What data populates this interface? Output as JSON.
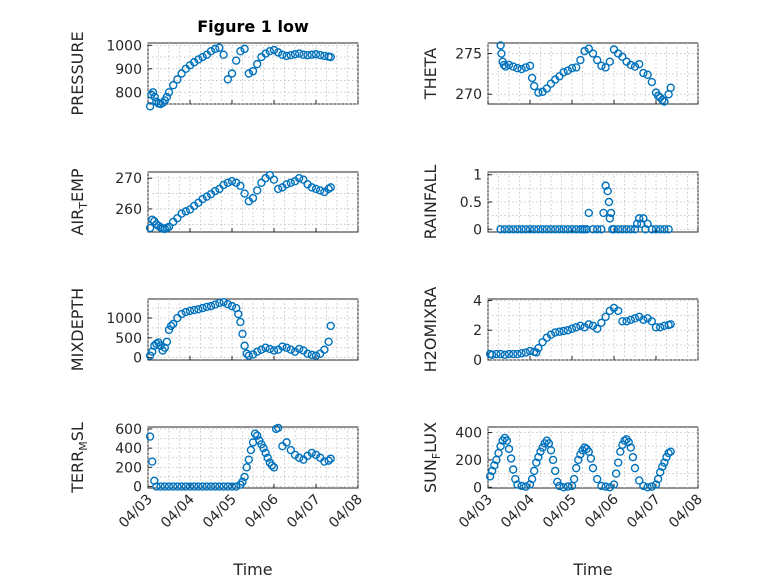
{
  "chart_data": [
    {
      "type": "scatter",
      "title": "Figure 1 low",
      "ylabel": "PRESSURE",
      "ylim": [
        750,
        1010
      ],
      "yticks": [
        800,
        900,
        1000
      ],
      "ytick_labels": [
        "800",
        "900",
        "1000"
      ],
      "xlim": [
        "04/03",
        "04/08"
      ],
      "series": [
        {
          "x": [
            3.05,
            3.08,
            3.12,
            3.16,
            3.2,
            3.25,
            3.3,
            3.35,
            3.4,
            3.45,
            3.5,
            3.6,
            3.7,
            3.8,
            3.9,
            4.0,
            4.1,
            4.2,
            4.3,
            4.4,
            4.5,
            4.6,
            4.7,
            4.8,
            4.9,
            5.0,
            5.1,
            5.2,
            5.3,
            5.4,
            5.5,
            5.6,
            5.7,
            5.8,
            5.9,
            6.0,
            6.1,
            6.2,
            6.3,
            6.4,
            6.5,
            6.6,
            6.7,
            6.8,
            6.9,
            7.0,
            7.1,
            7.2,
            7.3,
            7.35
          ],
          "y": [
            740,
            790,
            800,
            780,
            760,
            752,
            750,
            755,
            765,
            780,
            800,
            830,
            855,
            880,
            900,
            915,
            928,
            940,
            950,
            960,
            975,
            985,
            990,
            960,
            855,
            880,
            935,
            975,
            985,
            880,
            890,
            920,
            950,
            965,
            975,
            980,
            970,
            960,
            955,
            958,
            962,
            965,
            960,
            958,
            960,
            962,
            958,
            955,
            952,
            950
          ]
        }
      ]
    },
    {
      "type": "scatter",
      "ylabel": "THETA",
      "ylim": [
        268.8,
        276.3
      ],
      "yticks": [
        270,
        275
      ],
      "ytick_labels": [
        "270",
        "275"
      ],
      "xlim": [
        "04/03",
        "04/08"
      ],
      "series": [
        {
          "x": [
            3.3,
            3.32,
            3.35,
            3.38,
            3.42,
            3.5,
            3.6,
            3.7,
            3.8,
            3.9,
            4.0,
            4.05,
            4.1,
            4.2,
            4.3,
            4.4,
            4.5,
            4.6,
            4.7,
            4.8,
            4.9,
            5.0,
            5.1,
            5.2,
            5.3,
            5.4,
            5.5,
            5.6,
            5.7,
            5.8,
            5.9,
            6.0,
            6.1,
            6.2,
            6.3,
            6.4,
            6.5,
            6.6,
            6.7,
            6.8,
            6.9,
            7.0,
            7.05,
            7.1,
            7.15,
            7.2,
            7.3,
            7.35
          ],
          "y": [
            276,
            275,
            274,
            273.6,
            273.4,
            273.6,
            273.4,
            273.2,
            273.1,
            273.3,
            273.5,
            272,
            271,
            270.2,
            270.3,
            270.7,
            271.3,
            271.8,
            272.2,
            272.7,
            272.9,
            273.2,
            273.3,
            274.2,
            275.3,
            275.6,
            275,
            274.2,
            273.5,
            273.3,
            274,
            275.5,
            275,
            274.6,
            274,
            273.6,
            273.4,
            273.7,
            272.6,
            272.4,
            271.5,
            270.2,
            269.8,
            269.6,
            269.3,
            269.1,
            270,
            270.8
          ]
        }
      ]
    },
    {
      "type": "scatter",
      "ylabel": "AIR_TEMP",
      "ylim": [
        252.5,
        272
      ],
      "yticks": [
        260,
        270
      ],
      "ytick_labels": [
        "260",
        "270"
      ],
      "xlim": [
        "04/03",
        "04/08"
      ],
      "series": [
        {
          "x": [
            3.05,
            3.1,
            3.15,
            3.2,
            3.25,
            3.3,
            3.35,
            3.4,
            3.45,
            3.5,
            3.6,
            3.7,
            3.8,
            3.9,
            4.0,
            4.1,
            4.2,
            4.3,
            4.4,
            4.5,
            4.6,
            4.7,
            4.8,
            4.9,
            5.0,
            5.1,
            5.2,
            5.3,
            5.4,
            5.5,
            5.6,
            5.7,
            5.8,
            5.9,
            6.0,
            6.1,
            6.2,
            6.3,
            6.4,
            6.5,
            6.6,
            6.7,
            6.8,
            6.9,
            7.0,
            7.1,
            7.2,
            7.3,
            7.35
          ],
          "y": [
            253.8,
            256.5,
            256,
            255,
            254.5,
            254,
            253.6,
            253.5,
            253.8,
            254.2,
            255.8,
            257,
            258.5,
            259.2,
            259.8,
            261,
            262,
            263.2,
            264,
            264.8,
            265.8,
            266.5,
            267.8,
            268.5,
            269,
            268.5,
            267.5,
            265,
            262.5,
            263.5,
            266,
            268.5,
            270,
            271,
            269.5,
            266.5,
            267,
            268,
            268.5,
            269,
            270,
            269.5,
            268,
            267,
            266.5,
            266,
            265.5,
            266.5,
            267
          ]
        }
      ]
    },
    {
      "type": "scatter",
      "ylabel": "RAINFALL",
      "ylim": [
        -0.05,
        1.05
      ],
      "yticks": [
        0,
        0.5,
        1
      ],
      "ytick_labels": [
        "0",
        "0.5",
        "1"
      ],
      "xlim": [
        "04/03",
        "04/08"
      ],
      "series": [
        {
          "x": [
            3.3,
            3.4,
            3.5,
            3.6,
            3.7,
            3.8,
            3.9,
            4.0,
            4.1,
            4.2,
            4.3,
            4.4,
            4.5,
            4.6,
            4.7,
            4.8,
            4.9,
            5.0,
            5.1,
            5.2,
            5.25,
            5.3,
            5.35,
            5.4,
            5.5,
            5.6,
            5.7,
            5.75,
            5.8,
            5.85,
            5.88,
            5.9,
            5.93,
            5.96,
            6.0,
            6.1,
            6.2,
            6.3,
            6.4,
            6.5,
            6.55,
            6.6,
            6.65,
            6.7,
            6.75,
            6.8,
            6.9,
            7.0,
            7.1,
            7.2,
            7.3
          ],
          "y": [
            0,
            0,
            0,
            0,
            0,
            0,
            0,
            0,
            0,
            0,
            0,
            0,
            0,
            0,
            0,
            0,
            0,
            0,
            0,
            0,
            0,
            0,
            0,
            0.3,
            0,
            0,
            0,
            0.3,
            0.8,
            0.7,
            0.5,
            0.2,
            0.3,
            0,
            0,
            0,
            0,
            0,
            0,
            0,
            0.1,
            0.2,
            0.1,
            0.2,
            0,
            0.1,
            0,
            0,
            0,
            0,
            0
          ]
        }
      ]
    },
    {
      "type": "scatter",
      "ylabel": "MIXDEPTH",
      "ylim": [
        -60,
        1480
      ],
      "yticks": [
        0,
        500,
        1000
      ],
      "ytick_labels": [
        "0",
        "500",
        "1000"
      ],
      "xlim": [
        "04/03",
        "04/08"
      ],
      "series": [
        {
          "x": [
            3.05,
            3.1,
            3.15,
            3.2,
            3.25,
            3.3,
            3.35,
            3.4,
            3.45,
            3.5,
            3.55,
            3.6,
            3.7,
            3.8,
            3.9,
            4.0,
            4.1,
            4.2,
            4.3,
            4.4,
            4.5,
            4.6,
            4.7,
            4.8,
            4.9,
            5.0,
            5.1,
            5.15,
            5.2,
            5.25,
            5.3,
            5.35,
            5.4,
            5.5,
            5.6,
            5.7,
            5.8,
            5.9,
            6.0,
            6.1,
            6.2,
            6.3,
            6.4,
            6.5,
            6.6,
            6.7,
            6.8,
            6.9,
            7.0,
            7.1,
            7.2,
            7.3,
            7.35
          ],
          "y": [
            50,
            150,
            300,
            350,
            380,
            300,
            180,
            250,
            400,
            700,
            800,
            850,
            1000,
            1100,
            1150,
            1180,
            1200,
            1220,
            1250,
            1280,
            1300,
            1340,
            1380,
            1400,
            1350,
            1300,
            1250,
            1100,
            900,
            600,
            300,
            100,
            50,
            80,
            150,
            200,
            250,
            220,
            180,
            200,
            280,
            250,
            200,
            150,
            220,
            180,
            100,
            70,
            50,
            100,
            200,
            400,
            800
          ]
        }
      ]
    },
    {
      "type": "scatter",
      "ylabel": "H2OMIXRA",
      "ylim": [
        0,
        4.1
      ],
      "yticks": [
        0,
        2,
        4
      ],
      "ytick_labels": [
        "0",
        "2",
        "4"
      ],
      "xlim": [
        "04/03",
        "04/08"
      ],
      "series": [
        {
          "x": [
            3.05,
            3.1,
            3.2,
            3.3,
            3.4,
            3.5,
            3.6,
            3.7,
            3.8,
            3.9,
            4.0,
            4.1,
            4.15,
            4.2,
            4.3,
            4.4,
            4.5,
            4.6,
            4.7,
            4.8,
            4.9,
            5.0,
            5.1,
            5.2,
            5.3,
            5.4,
            5.5,
            5.6,
            5.7,
            5.8,
            5.9,
            6.0,
            6.1,
            6.2,
            6.3,
            6.4,
            6.5,
            6.6,
            6.7,
            6.8,
            6.9,
            7.0,
            7.1,
            7.2,
            7.3,
            7.35
          ],
          "y": [
            0.4,
            0.35,
            0.4,
            0.4,
            0.35,
            0.4,
            0.4,
            0.4,
            0.45,
            0.5,
            0.6,
            0.55,
            0.5,
            0.8,
            1.2,
            1.5,
            1.7,
            1.85,
            1.9,
            1.95,
            2.0,
            2.1,
            2.2,
            2.3,
            2.2,
            2.4,
            2.3,
            2.1,
            2.5,
            2.9,
            3.3,
            3.5,
            3.3,
            2.6,
            2.6,
            2.7,
            2.8,
            2.9,
            2.7,
            2.8,
            2.6,
            2.2,
            2.2,
            2.3,
            2.35,
            2.4
          ]
        }
      ]
    },
    {
      "type": "scatter",
      "ylabel": "TERR_MSL",
      "ylim": [
        -15,
        620
      ],
      "yticks": [
        0,
        200,
        400,
        600
      ],
      "ytick_labels": [
        "0",
        "200",
        "400",
        "600"
      ],
      "xlim": [
        "04/03",
        "04/08"
      ],
      "series": [
        {
          "x": [
            3.05,
            3.1,
            3.15,
            3.2,
            3.3,
            3.4,
            3.5,
            3.6,
            3.7,
            3.8,
            3.9,
            4.0,
            4.1,
            4.2,
            4.3,
            4.4,
            4.5,
            4.6,
            4.7,
            4.8,
            4.9,
            5.0,
            5.1,
            5.2,
            5.25,
            5.3,
            5.35,
            5.4,
            5.45,
            5.5,
            5.55,
            5.6,
            5.65,
            5.7,
            5.75,
            5.8,
            5.85,
            5.9,
            5.95,
            6.0,
            6.05,
            6.1,
            6.2,
            6.3,
            6.4,
            6.5,
            6.6,
            6.7,
            6.8,
            6.9,
            7.0,
            7.1,
            7.2,
            7.3,
            7.35
          ],
          "y": [
            520,
            260,
            60,
            0,
            0,
            0,
            0,
            0,
            0,
            0,
            0,
            0,
            0,
            0,
            0,
            0,
            0,
            0,
            0,
            0,
            0,
            0,
            0,
            20,
            50,
            100,
            200,
            280,
            380,
            460,
            550,
            530,
            480,
            440,
            400,
            350,
            300,
            250,
            220,
            200,
            600,
            610,
            420,
            460,
            380,
            330,
            300,
            280,
            320,
            350,
            330,
            300,
            260,
            270,
            290
          ]
        }
      ]
    },
    {
      "type": "scatter",
      "ylabel": "SUN_FLUX",
      "ylim": [
        -5,
        440
      ],
      "yticks": [
        0,
        200,
        400
      ],
      "ytick_labels": [
        "0",
        "200",
        "400"
      ],
      "xlim": [
        "04/03",
        "04/08"
      ],
      "series": [
        {
          "x": [
            3.05,
            3.1,
            3.15,
            3.2,
            3.25,
            3.3,
            3.35,
            3.4,
            3.45,
            3.5,
            3.55,
            3.6,
            3.65,
            3.7,
            3.8,
            3.9,
            4.0,
            4.05,
            4.1,
            4.15,
            4.2,
            4.25,
            4.3,
            4.35,
            4.4,
            4.45,
            4.5,
            4.55,
            4.6,
            4.65,
            4.7,
            4.8,
            4.9,
            5.0,
            5.05,
            5.1,
            5.15,
            5.2,
            5.25,
            5.3,
            5.35,
            5.4,
            5.45,
            5.5,
            5.6,
            5.7,
            5.8,
            5.9,
            6.0,
            6.05,
            6.1,
            6.15,
            6.2,
            6.25,
            6.3,
            6.35,
            6.4,
            6.45,
            6.5,
            6.6,
            6.7,
            6.8,
            6.9,
            7.0,
            7.05,
            7.1,
            7.15,
            7.2,
            7.25,
            7.3,
            7.35
          ],
          "y": [
            80,
            120,
            160,
            200,
            250,
            300,
            340,
            360,
            340,
            280,
            210,
            130,
            60,
            20,
            10,
            5,
            20,
            60,
            120,
            180,
            220,
            260,
            290,
            320,
            340,
            320,
            270,
            200,
            120,
            40,
            10,
            0,
            5,
            10,
            60,
            140,
            200,
            240,
            270,
            290,
            280,
            260,
            210,
            140,
            60,
            10,
            5,
            0,
            20,
            100,
            180,
            260,
            310,
            340,
            350,
            330,
            290,
            220,
            140,
            50,
            10,
            0,
            5,
            20,
            60,
            110,
            150,
            180,
            220,
            250,
            260
          ]
        }
      ]
    }
  ],
  "xtick_labels": [
    "04/03",
    "04/04",
    "04/05",
    "04/06",
    "04/07",
    "04/08"
  ],
  "xlabel": "Time",
  "colors": {
    "marker": "#0072bd",
    "axis": "#262626",
    "grid": "#bdbdbd"
  }
}
